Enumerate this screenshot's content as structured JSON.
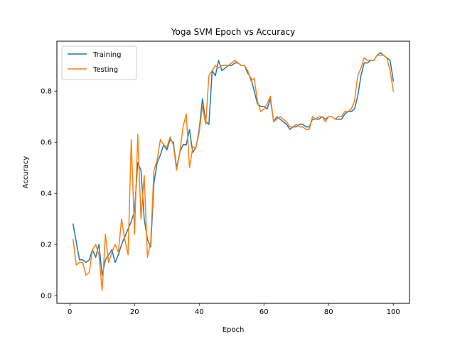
{
  "chart_data": {
    "type": "line",
    "title": "Yoga SVM Epoch vs Accuracy",
    "xlabel": "Epoch",
    "ylabel": "Accuracy",
    "xlim": [
      -4,
      105
    ],
    "ylim": [
      -0.03,
      0.995
    ],
    "xticks": [
      0,
      20,
      40,
      60,
      80,
      100
    ],
    "yticks": [
      0.0,
      0.2,
      0.4,
      0.6,
      0.8
    ],
    "ytick_labels": [
      "0.0",
      "0.2",
      "0.4",
      "0.6",
      "0.8"
    ],
    "grid": false,
    "legend_position": "top-left",
    "x": [
      1,
      2,
      3,
      4,
      5,
      6,
      7,
      8,
      9,
      10,
      11,
      12,
      13,
      14,
      15,
      16,
      17,
      18,
      19,
      20,
      21,
      22,
      23,
      24,
      25,
      26,
      27,
      28,
      29,
      30,
      31,
      32,
      33,
      34,
      35,
      36,
      37,
      38,
      39,
      40,
      41,
      42,
      43,
      44,
      45,
      46,
      47,
      48,
      49,
      50,
      51,
      52,
      53,
      54,
      55,
      56,
      57,
      58,
      59,
      60,
      61,
      62,
      63,
      64,
      65,
      66,
      67,
      68,
      69,
      70,
      71,
      72,
      73,
      74,
      75,
      76,
      77,
      78,
      79,
      80,
      81,
      82,
      83,
      84,
      85,
      86,
      87,
      88,
      89,
      90,
      91,
      92,
      93,
      94,
      95,
      96,
      97,
      98,
      99,
      100
    ],
    "series": [
      {
        "name": "Training",
        "color": "#1f77b4",
        "values": [
          0.28,
          0.21,
          0.14,
          0.14,
          0.13,
          0.14,
          0.18,
          0.15,
          0.2,
          0.08,
          0.14,
          0.16,
          0.18,
          0.13,
          0.16,
          0.2,
          0.23,
          0.26,
          0.29,
          0.33,
          0.52,
          0.49,
          0.3,
          0.22,
          0.19,
          0.44,
          0.52,
          0.55,
          0.59,
          0.57,
          0.61,
          0.6,
          0.5,
          0.56,
          0.59,
          0.59,
          0.65,
          0.56,
          0.58,
          0.65,
          0.77,
          0.68,
          0.67,
          0.88,
          0.86,
          0.92,
          0.88,
          0.89,
          0.9,
          0.9,
          0.91,
          0.91,
          0.9,
          0.9,
          0.87,
          0.85,
          0.8,
          0.75,
          0.74,
          0.74,
          0.73,
          0.77,
          0.68,
          0.7,
          0.69,
          0.68,
          0.67,
          0.65,
          0.66,
          0.66,
          0.67,
          0.67,
          0.66,
          0.66,
          0.69,
          0.69,
          0.69,
          0.7,
          0.69,
          0.7,
          0.7,
          0.69,
          0.69,
          0.69,
          0.71,
          0.72,
          0.72,
          0.73,
          0.78,
          0.86,
          0.91,
          0.91,
          0.92,
          0.92,
          0.94,
          0.95,
          0.94,
          0.93,
          0.92,
          0.84
        ]
      },
      {
        "name": "Testing",
        "color": "#ff7f0e",
        "values": [
          0.22,
          0.12,
          0.13,
          0.13,
          0.08,
          0.09,
          0.18,
          0.2,
          0.16,
          0.02,
          0.24,
          0.13,
          0.17,
          0.2,
          0.17,
          0.3,
          0.22,
          0.16,
          0.61,
          0.24,
          0.63,
          0.3,
          0.47,
          0.15,
          0.21,
          0.49,
          0.53,
          0.61,
          0.59,
          0.58,
          0.62,
          0.59,
          0.49,
          0.56,
          0.66,
          0.71,
          0.5,
          0.58,
          0.58,
          0.64,
          0.74,
          0.67,
          0.86,
          0.88,
          0.9,
          0.89,
          0.9,
          0.9,
          0.9,
          0.91,
          0.92,
          0.91,
          0.9,
          0.9,
          0.88,
          0.84,
          0.85,
          0.76,
          0.72,
          0.73,
          0.75,
          0.78,
          0.68,
          0.69,
          0.7,
          0.69,
          0.68,
          0.66,
          0.66,
          0.67,
          0.66,
          0.66,
          0.65,
          0.65,
          0.7,
          0.69,
          0.7,
          0.7,
          0.68,
          0.7,
          0.7,
          0.69,
          0.7,
          0.7,
          0.72,
          0.72,
          0.73,
          0.76,
          0.86,
          0.89,
          0.93,
          0.92,
          0.92,
          0.92,
          0.94,
          0.94,
          0.94,
          0.93,
          0.88,
          0.8
        ]
      }
    ]
  }
}
